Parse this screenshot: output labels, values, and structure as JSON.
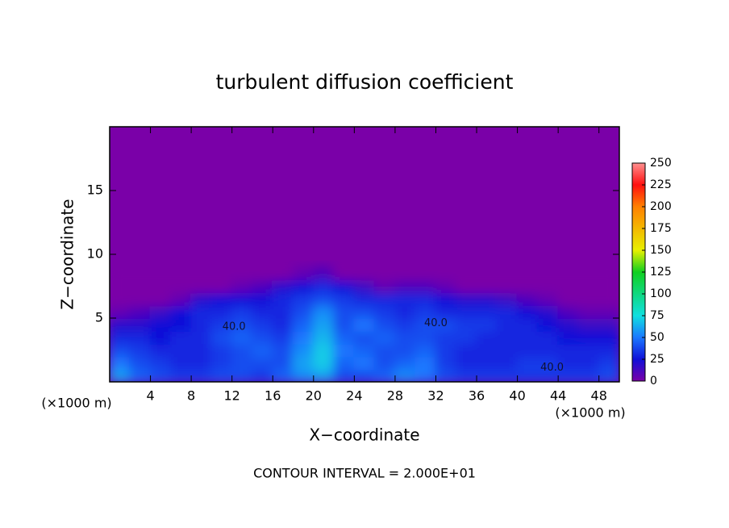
{
  "chart_data": {
    "type": "heatmap",
    "title": "turbulent diffusion coefficient",
    "xlabel": "X−coordinate",
    "ylabel": "Z−coordinate",
    "x_unit_label": "(×1000 m)",
    "x_unit_label_right": "(×1000 m)",
    "footer": "CONTOUR INTERVAL = 2.000E+01",
    "xlim": [
      0,
      50
    ],
    "ylim": [
      0,
      20
    ],
    "xticks": [
      4,
      8,
      12,
      16,
      20,
      24,
      28,
      32,
      36,
      40,
      44,
      48
    ],
    "yticks": [
      5,
      10,
      15
    ],
    "clim": [
      0,
      250
    ],
    "cticks": [
      0,
      25,
      50,
      75,
      100,
      125,
      150,
      175,
      200,
      225,
      250
    ],
    "x": [
      1,
      3,
      5,
      7,
      9,
      11,
      13,
      15,
      17,
      19,
      21,
      23,
      25,
      27,
      29,
      31,
      33,
      35,
      37,
      39,
      41,
      43,
      45,
      47,
      49
    ],
    "y": [
      0.5,
      1.5,
      2.5,
      3.5,
      4.5,
      5.5,
      6.5,
      7.5,
      8.5
    ],
    "z": [
      [
        60,
        45,
        40,
        35,
        35,
        40,
        40,
        35,
        45,
        55,
        60,
        40,
        40,
        45,
        55,
        50,
        40,
        35,
        35,
        35,
        35,
        35,
        35,
        35,
        40
      ],
      [
        50,
        40,
        35,
        30,
        30,
        35,
        40,
        40,
        40,
        60,
        70,
        45,
        50,
        40,
        45,
        50,
        35,
        30,
        30,
        30,
        35,
        35,
        30,
        30,
        35
      ],
      [
        40,
        35,
        30,
        30,
        30,
        35,
        40,
        45,
        40,
        55,
        70,
        50,
        45,
        40,
        40,
        45,
        35,
        30,
        30,
        30,
        30,
        30,
        30,
        30,
        30
      ],
      [
        30,
        30,
        25,
        30,
        30,
        40,
        45,
        40,
        35,
        50,
        65,
        45,
        40,
        45,
        40,
        40,
        35,
        35,
        30,
        30,
        30,
        30,
        25,
        25,
        25
      ],
      [
        20,
        20,
        25,
        25,
        30,
        35,
        40,
        35,
        30,
        45,
        60,
        40,
        50,
        40,
        35,
        40,
        40,
        35,
        35,
        30,
        30,
        25,
        20,
        15,
        15
      ],
      [
        5,
        10,
        15,
        25,
        30,
        30,
        35,
        30,
        30,
        40,
        55,
        40,
        40,
        35,
        30,
        35,
        30,
        30,
        30,
        30,
        25,
        20,
        10,
        5,
        5
      ],
      [
        0,
        0,
        0,
        5,
        20,
        25,
        25,
        25,
        30,
        35,
        40,
        35,
        30,
        30,
        30,
        30,
        25,
        20,
        20,
        15,
        10,
        5,
        0,
        0,
        0
      ],
      [
        0,
        0,
        0,
        0,
        0,
        0,
        5,
        10,
        20,
        25,
        30,
        25,
        15,
        5,
        10,
        10,
        5,
        0,
        0,
        0,
        0,
        0,
        0,
        0,
        0
      ],
      [
        0,
        0,
        0,
        0,
        0,
        0,
        0,
        0,
        0,
        5,
        10,
        0,
        0,
        0,
        0,
        0,
        0,
        0,
        0,
        0,
        0,
        0,
        0,
        0,
        0
      ]
    ],
    "annotations": [
      {
        "text": "40.0",
        "x": 12.2,
        "y": 4.3
      },
      {
        "text": "40.0",
        "x": 32.0,
        "y": 4.6
      },
      {
        "text": "40.0",
        "x": 43.4,
        "y": 1.1
      }
    ]
  }
}
